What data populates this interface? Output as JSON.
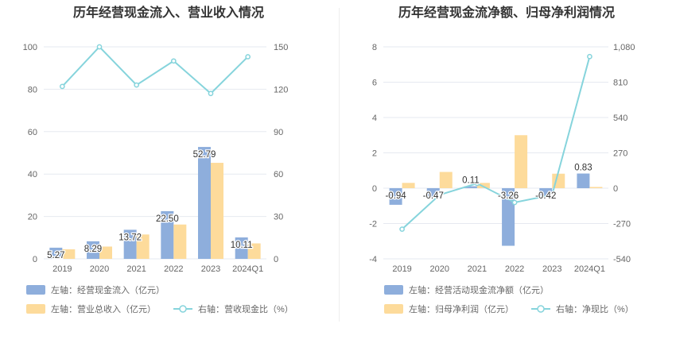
{
  "chart_data": [
    {
      "type": "bar",
      "title": "历年经营现金流入、营业收入情况",
      "categories": [
        "2019",
        "2020",
        "2021",
        "2022",
        "2023",
        "2024Q1"
      ],
      "left_axis": {
        "ticks": [
          "0",
          "20",
          "40",
          "60",
          "80",
          "100"
        ],
        "min": 0,
        "max": 100
      },
      "right_axis": {
        "ticks": [
          "0",
          "30",
          "60",
          "90",
          "120",
          "150"
        ],
        "min": 0,
        "max": 150
      },
      "series": [
        {
          "name": "左轴：经营现金流入（亿元）",
          "axis": "left",
          "kind": "bar",
          "color": "#8eaedc",
          "values": [
            5.27,
            8.29,
            13.72,
            22.5,
            52.79,
            10.11
          ],
          "labels": [
            "5.27",
            "8.29",
            "13.72",
            "22.50",
            "52.79",
            "10.11"
          ]
        },
        {
          "name": "左轴：营业总收入（亿元）",
          "axis": "left",
          "kind": "bar",
          "color": "#fddb9b",
          "values": [
            4.5,
            5.8,
            11.5,
            16.2,
            45.3,
            7.3
          ]
        },
        {
          "name": "右轴：营收现金比（%）",
          "axis": "right",
          "kind": "line",
          "color": "#86d4dc",
          "values": [
            122,
            150,
            123,
            140,
            117,
            143
          ]
        }
      ]
    },
    {
      "type": "bar",
      "title": "历年经营现金流净额、归母净利润情况",
      "categories": [
        "2019",
        "2020",
        "2021",
        "2022",
        "2023",
        "2024Q1"
      ],
      "left_axis": {
        "ticks": [
          "-4",
          "-2",
          "0",
          "2",
          "4",
          "6",
          "8"
        ],
        "min": -4,
        "max": 8
      },
      "right_axis": {
        "ticks": [
          "-540",
          "-270",
          "0",
          "270",
          "540",
          "810",
          "1,080"
        ],
        "min": -540,
        "max": 1080
      },
      "series": [
        {
          "name": "左轴：经营活动现金流净额（亿元）",
          "axis": "left",
          "kind": "bar",
          "color": "#8eaedc",
          "values": [
            -0.94,
            -0.47,
            0.11,
            -3.26,
            -0.42,
            0.83
          ],
          "labels": [
            "-0.94",
            "-0.47",
            "0.11",
            "-3.26",
            "-0.42",
            "0.83"
          ]
        },
        {
          "name": "左轴：归母净利润（亿元）",
          "axis": "left",
          "kind": "bar",
          "color": "#fddb9b",
          "values": [
            0.3,
            0.92,
            0.3,
            3.0,
            0.82,
            0.07
          ]
        },
        {
          "name": "右轴：净现比（%）",
          "axis": "right",
          "kind": "line",
          "color": "#86d4dc",
          "values": [
            -313,
            -51,
            37,
            -109,
            -51,
            1006
          ]
        }
      ]
    }
  ]
}
